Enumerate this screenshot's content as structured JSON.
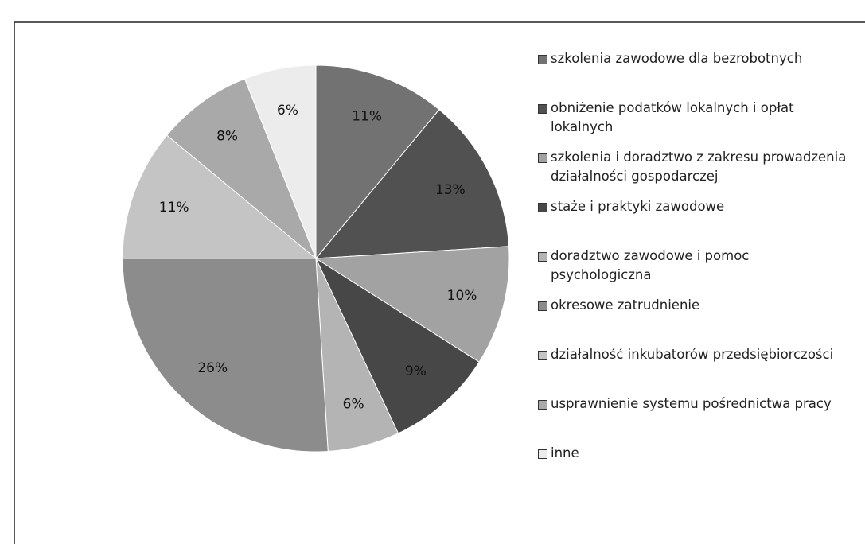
{
  "chart_data": {
    "type": "pie",
    "categories": [
      "szkolenia zawodowe dla bezrobotnych",
      "obniżenie podatków lokalnych i opłat lokalnych",
      "szkolenia i doradztwo z zakresu prowadzenia działalności gospodarczej",
      "staże i praktyki zawodowe",
      "doradztwo zawodowe i pomoc psychologiczna",
      "okresowe zatrudnienie",
      "działalność inkubatorów przedsiębiorczości",
      "usprawnienie systemu pośrednictwa pracy",
      "inne"
    ],
    "values": [
      11,
      13,
      10,
      9,
      6,
      26,
      11,
      8,
      6
    ],
    "value_labels": [
      "11%",
      "13%",
      "10%",
      "9%",
      "6%",
      "26%",
      "11%",
      "8%",
      "6%"
    ],
    "colors": [
      "#727272",
      "#515151",
      "#a2a2a2",
      "#474747",
      "#b4b4b4",
      "#8c8c8c",
      "#c4c4c4",
      "#a9a9a9",
      "#ececec"
    ],
    "legend": "right"
  }
}
